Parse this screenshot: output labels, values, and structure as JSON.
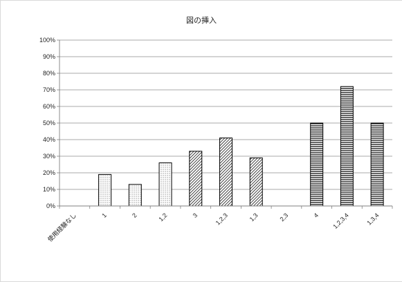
{
  "chart_data": {
    "type": "bar",
    "title": "図の挿入",
    "categories": [
      "使用経験なし",
      "1",
      "2",
      "1,2",
      "3",
      "1,2,3",
      "1,3",
      "2,3",
      "4",
      "1,2,3,4",
      "1,3,4"
    ],
    "values": [
      0,
      19,
      13,
      26,
      33,
      41,
      29,
      0,
      50,
      72,
      50
    ],
    "patterns": [
      "none",
      "dots",
      "dots",
      "dots",
      "diagonal",
      "diagonal",
      "diagonal",
      "diagonal",
      "horizontal",
      "horizontal",
      "horizontal"
    ],
    "ylim": [
      0,
      100
    ],
    "yticks": [
      "0%",
      "10%",
      "20%",
      "30%",
      "40%",
      "50%",
      "60%",
      "70%",
      "80%",
      "90%",
      "100%"
    ],
    "grid": true,
    "legend": "none"
  }
}
